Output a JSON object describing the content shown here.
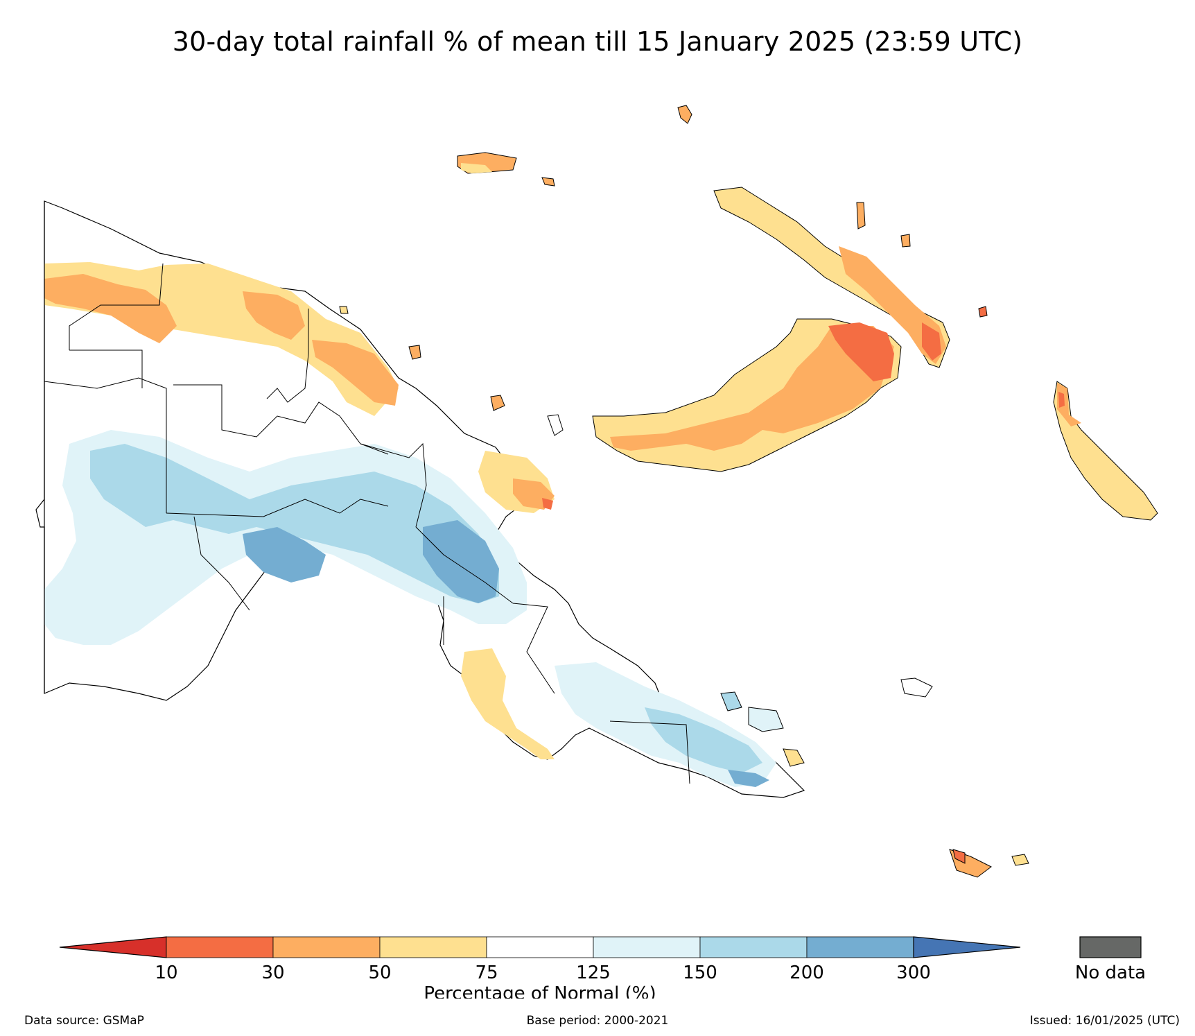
{
  "title": "30-day total rainfall % of mean till 15 January 2025 (23:59 UTC)",
  "legend": {
    "label": "Percentage of Normal (%)",
    "ticks": [
      "10",
      "30",
      "50",
      "75",
      "125",
      "150",
      "200",
      "300"
    ],
    "colors": [
      "#d7302a",
      "#f46d43",
      "#fdae61",
      "#fee090",
      "#ffffff",
      "#e0f3f8",
      "#abd9e9",
      "#74add1",
      "#4575b4"
    ],
    "no_data_label": "No data",
    "no_data_color": "#666866"
  },
  "footer": {
    "source": "Data source: GSMaP",
    "base_period": "Base period: 2000-2021",
    "issued": "Issued: 16/01/2025 (UTC)"
  }
}
